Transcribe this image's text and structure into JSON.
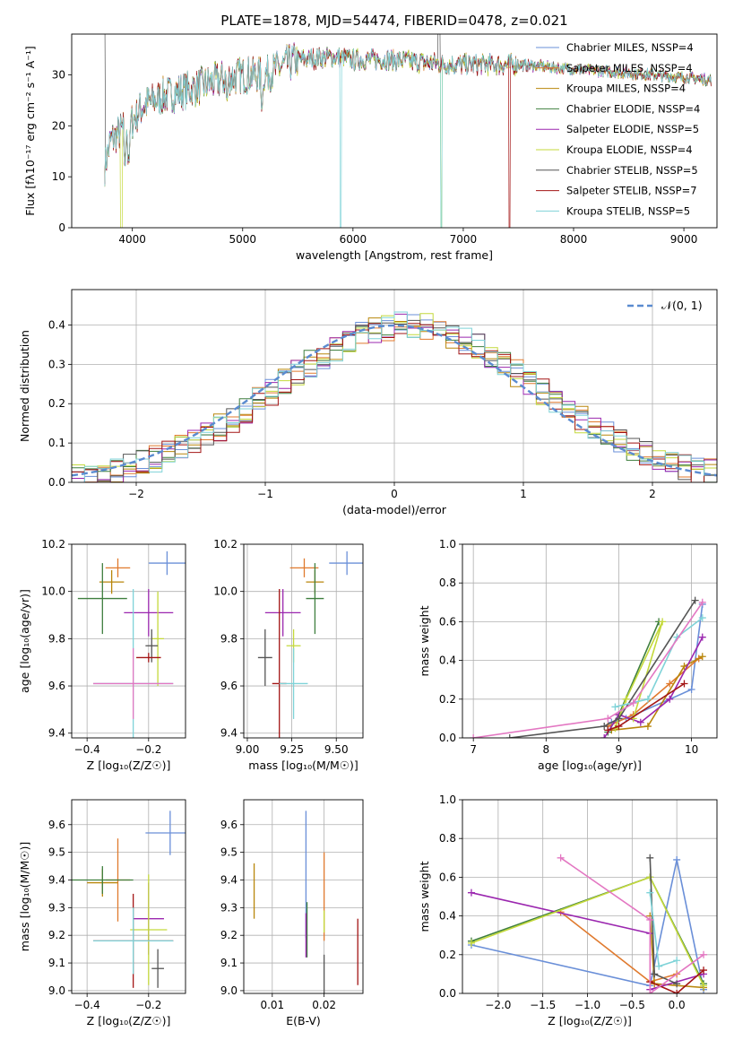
{
  "figure": {
    "title": "PLATE=1878, MJD=54474, FIBERID=0478, z=0.021",
    "colors": [
      "#6a8fd8",
      "#e07a2e",
      "#b8860b",
      "#3f7f3f",
      "#9b27af",
      "#c4d93b",
      "#555555",
      "#a31515",
      "#7fd3d8"
    ],
    "extra_colors": {
      "pink": "#e377c2",
      "lime": "#a6d13a",
      "darkgreen": "#2e6b2e",
      "gray": "#444444"
    }
  },
  "chart_data": [
    {
      "id": "spectrum",
      "type": "line",
      "xlabel": "wavelength [Angstrom, rest frame]",
      "ylabel": "Flux [fλ10⁻¹⁷ erg cm⁻² s⁻¹ A⁻¹]",
      "xlim": [
        3450,
        9300
      ],
      "ylim": [
        0,
        38
      ],
      "xticks": [
        4000,
        5000,
        6000,
        7000,
        8000,
        9000
      ],
      "yticks": [
        0,
        10,
        20,
        30
      ],
      "legend_position": "top-right",
      "series": [
        {
          "name": "Chabrier MILES, NSSP=4"
        },
        {
          "name": "Salpeter MILES, NSSP=4"
        },
        {
          "name": "Kroupa MILES, NSSP=4"
        },
        {
          "name": "Chabrier ELODIE, NSSP=4"
        },
        {
          "name": "Salpeter ELODIE, NSSP=5"
        },
        {
          "name": "Kroupa ELODIE, NSSP=4"
        },
        {
          "name": "Chabrier STELIB, NSSP=5"
        },
        {
          "name": "Salpeter STELIB, NSSP=7"
        },
        {
          "name": "Kroupa STELIB, NSSP=5"
        }
      ],
      "continuum": {
        "x": [
          3750,
          3800,
          3900,
          4000,
          4100,
          4300,
          4500,
          4800,
          5000,
          5200,
          5500,
          5800,
          6000,
          6300,
          6600,
          6900,
          7200,
          7500,
          7800,
          8100,
          8400,
          8700,
          9000,
          9250
        ],
        "y": [
          12,
          17,
          19,
          21,
          24,
          26,
          27,
          29,
          30,
          30,
          33,
          33.5,
          33,
          33,
          32.5,
          32,
          32,
          32,
          31.5,
          31,
          30.5,
          30,
          29.5,
          29
        ]
      }
    },
    {
      "id": "residuals",
      "type": "histogram",
      "xlabel": "(data-model)/error",
      "ylabel": "Normed distribution",
      "xlim": [
        -2.5,
        2.5
      ],
      "ylim": [
        0,
        0.49
      ],
      "xticks": [
        -2,
        -1,
        0,
        1,
        2
      ],
      "yticks": [
        0.0,
        0.1,
        0.2,
        0.3,
        0.4
      ],
      "legend": "𝒩(0, 1)",
      "legend_position": "top-right",
      "grid": true
    },
    {
      "id": "age_vs_Z",
      "type": "errorbar",
      "xlabel": "Z [log₁₀(Z/Z☉)]",
      "ylabel": "age  [log₁₀(age/yr)]",
      "xlim": [
        -0.45,
        -0.08
      ],
      "ylim": [
        9.38,
        10.2
      ],
      "xticks": [
        -0.4,
        -0.2
      ],
      "yticks": [
        9.4,
        9.6,
        9.8,
        10.0,
        10.2
      ],
      "grid": true,
      "points": [
        {
          "x": -0.14,
          "xerr": 0.06,
          "y": 10.12,
          "yerr": 0.05
        },
        {
          "x": -0.3,
          "xerr": 0.04,
          "y": 10.1,
          "yerr": 0.04
        },
        {
          "x": -0.32,
          "xerr": 0.04,
          "y": 10.04,
          "yerr": 0.05
        },
        {
          "x": -0.35,
          "xerr": 0.08,
          "y": 9.97,
          "yerr": 0.15
        },
        {
          "x": -0.2,
          "xerr": 0.08,
          "y": 9.91,
          "yerr": 0.1
        },
        {
          "x": -0.17,
          "xerr": 0.02,
          "y": 9.8,
          "yerr": 0.2
        },
        {
          "x": -0.19,
          "xerr": 0.02,
          "y": 9.77,
          "yerr": 0.07
        },
        {
          "x": -0.2,
          "xerr": 0.04,
          "y": 9.72,
          "yerr": 0.02
        },
        {
          "x": -0.25,
          "xerr": 0.13,
          "y": 9.61,
          "yerr": 0.4
        },
        {
          "x": -0.25,
          "xerr": 0.13,
          "y": 9.61,
          "yerr": 0.15
        }
      ]
    },
    {
      "id": "age_vs_mass",
      "type": "errorbar",
      "xlabel": "mass [log₁₀(M/M☉)]",
      "ylabel": "",
      "xlim": [
        8.98,
        9.65
      ],
      "ylim": [
        9.38,
        10.2
      ],
      "xticks": [
        9.0,
        9.25,
        9.5
      ],
      "yticks": [
        9.4,
        9.6,
        9.8,
        10.0,
        10.2
      ],
      "grid": true,
      "points": [
        {
          "x": 9.56,
          "xerr": 0.1,
          "y": 10.12,
          "yerr": 0.05
        },
        {
          "x": 9.32,
          "xerr": 0.08,
          "y": 10.1,
          "yerr": 0.04
        },
        {
          "x": 9.38,
          "xerr": 0.05,
          "y": 10.04,
          "yerr": 0.05
        },
        {
          "x": 9.38,
          "xerr": 0.05,
          "y": 9.97,
          "yerr": 0.15
        },
        {
          "x": 9.2,
          "xerr": 0.1,
          "y": 9.91,
          "yerr": 0.1
        },
        {
          "x": 9.26,
          "xerr": 0.04,
          "y": 9.77,
          "yerr": 0.07
        },
        {
          "x": 9.1,
          "xerr": 0.04,
          "y": 9.72,
          "yerr": 0.12
        },
        {
          "x": 9.18,
          "xerr": 0.04,
          "y": 9.61,
          "yerr": 0.4
        },
        {
          "x": 9.26,
          "xerr": 0.08,
          "y": 9.61,
          "yerr": 0.15
        }
      ]
    },
    {
      "id": "mass_weight_vs_age",
      "type": "line",
      "xlabel": "age  [log₁₀(age/yr)]",
      "ylabel": "mass weight",
      "xlim": [
        6.85,
        10.35
      ],
      "ylim": [
        0,
        1.0
      ],
      "xticks": [
        7,
        8,
        9,
        10
      ],
      "yticks": [
        0.0,
        0.2,
        0.4,
        0.6,
        0.8,
        1.0
      ],
      "grid": true,
      "series": [
        {
          "x": [
            8.9,
            9.1,
            10.0,
            10.15
          ],
          "y": [
            0.08,
            0.1,
            0.25,
            0.69
          ]
        },
        {
          "x": [
            8.85,
            9.2,
            9.7,
            10.1
          ],
          "y": [
            0.06,
            0.12,
            0.28,
            0.41
          ]
        },
        {
          "x": [
            8.9,
            9.4,
            9.9,
            10.15
          ],
          "y": [
            0.04,
            0.06,
            0.37,
            0.42
          ]
        },
        {
          "x": [
            8.85,
            9.0,
            9.55
          ],
          "y": [
            0.03,
            0.12,
            0.6
          ]
        },
        {
          "x": [
            8.8,
            9.0,
            9.3,
            9.7,
            10.15
          ],
          "y": [
            0.0,
            0.12,
            0.08,
            0.2,
            0.52
          ]
        },
        {
          "x": [
            8.95,
            9.1,
            9.6,
            9.2
          ],
          "y": [
            0.05,
            0.2,
            0.6,
            0.1
          ]
        },
        {
          "x": [
            7.5,
            8.8,
            9.0,
            10.05
          ],
          "y": [
            0.0,
            0.06,
            0.1,
            0.71
          ]
        },
        {
          "x": [
            8.85,
            9.0,
            9.9
          ],
          "y": [
            0.04,
            0.06,
            0.28
          ]
        },
        {
          "x": [
            8.95,
            9.4,
            9.8,
            10.15
          ],
          "y": [
            0.16,
            0.2,
            0.52,
            0.62
          ]
        },
        {
          "x": [
            7.0,
            8.85,
            9.2,
            10.15
          ],
          "y": [
            0.0,
            0.1,
            0.18,
            0.7
          ]
        }
      ]
    },
    {
      "id": "mass_vs_Z",
      "type": "errorbar",
      "xlabel": "Z [log₁₀(Z/Z☉)]",
      "ylabel": "mass [log₁₀(M/M☉)]",
      "xlim": [
        -0.45,
        -0.08
      ],
      "ylim": [
        8.99,
        9.69
      ],
      "xticks": [
        -0.4,
        -0.2
      ],
      "yticks": [
        9.0,
        9.1,
        9.2,
        9.3,
        9.4,
        9.5,
        9.6
      ],
      "grid": true,
      "points": [
        {
          "x": -0.13,
          "xerr": 0.08,
          "y": 9.57,
          "yerr": 0.08
        },
        {
          "x": -0.3,
          "xerr": 0.04,
          "y": 9.4,
          "yerr": 0.15
        },
        {
          "x": -0.35,
          "xerr": 0.05,
          "y": 9.39,
          "yerr": 0.05
        },
        {
          "x": -0.35,
          "xerr": 0.1,
          "y": 9.4,
          "yerr": 0.05
        },
        {
          "x": -0.2,
          "xerr": 0.05,
          "y": 9.26,
          "yerr": 0.13
        },
        {
          "x": -0.2,
          "xerr": 0.06,
          "y": 9.22,
          "yerr": 0.2
        },
        {
          "x": -0.17,
          "xerr": 0.02,
          "y": 9.08,
          "yerr": 0.07
        },
        {
          "x": -0.25,
          "xerr": 0.13,
          "y": 9.18,
          "yerr": 0.17
        },
        {
          "x": -0.25,
          "xerr": 0.13,
          "y": 9.18,
          "yerr": 0.12
        }
      ]
    },
    {
      "id": "mass_vs_ebv",
      "type": "errorbar",
      "xlabel": "E(B-V)",
      "ylabel": "",
      "xlim": [
        0.0045,
        0.0275
      ],
      "ylim": [
        8.99,
        9.69
      ],
      "xticks": [
        0.01,
        0.02
      ],
      "yticks": [
        9.0,
        9.1,
        9.2,
        9.3,
        9.4,
        9.5,
        9.6
      ],
      "grid": true,
      "points": [
        {
          "x": 0.0165,
          "y": 9.42,
          "yerr": 0.23
        },
        {
          "x": 0.02,
          "y": 9.34,
          "yerr": 0.16
        },
        {
          "x": 0.0065,
          "y": 9.36,
          "yerr": 0.1
        },
        {
          "x": 0.0167,
          "y": 9.22,
          "yerr": 0.1
        },
        {
          "x": 0.0165,
          "y": 9.2,
          "yerr": 0.08
        },
        {
          "x": 0.02,
          "y": 9.25,
          "yerr": 0.04
        },
        {
          "x": 0.02,
          "y": 9.06,
          "yerr": 0.07
        },
        {
          "x": 0.0265,
          "y": 9.14,
          "yerr": 0.12
        }
      ]
    },
    {
      "id": "mass_weight_vs_Z",
      "type": "line",
      "xlabel": "Z [log₁₀(Z/Z☉)]",
      "ylabel": "mass weight",
      "xlim": [
        -2.4,
        0.45
      ],
      "ylim": [
        0,
        1.0
      ],
      "xticks": [
        -2.0,
        -1.5,
        -1.0,
        -0.5,
        0.0
      ],
      "yticks": [
        0.0,
        0.2,
        0.4,
        0.6,
        0.8,
        1.0
      ],
      "grid": true,
      "series": [
        {
          "x": [
            -2.3,
            -0.3,
            0.0,
            0.3
          ],
          "y": [
            0.25,
            0.04,
            0.69,
            0.02
          ]
        },
        {
          "x": [
            -1.3,
            -0.3,
            0.0
          ],
          "y": [
            0.42,
            0.06,
            0.1
          ]
        },
        {
          "x": [
            -0.3,
            -0.25,
            0.3
          ],
          "y": [
            0.4,
            0.05,
            0.03
          ]
        },
        {
          "x": [
            -2.3,
            -0.3,
            0.3
          ],
          "y": [
            0.27,
            0.6,
            0.05
          ]
        },
        {
          "x": [
            -2.3,
            -0.3,
            -0.3,
            0.3
          ],
          "y": [
            0.52,
            0.31,
            0.02,
            0.1
          ]
        },
        {
          "x": [
            -2.3,
            -0.3,
            0.3
          ],
          "y": [
            0.26,
            0.6,
            0.04
          ]
        },
        {
          "x": [
            -0.3,
            -0.25,
            0.0
          ],
          "y": [
            0.7,
            0.1,
            0.05
          ]
        },
        {
          "x": [
            -0.3,
            0.0,
            0.3
          ],
          "y": [
            0.06,
            0.0,
            0.12
          ]
        },
        {
          "x": [
            -0.3,
            -0.2,
            0.0
          ],
          "y": [
            0.52,
            0.14,
            0.17
          ]
        },
        {
          "x": [
            -1.3,
            -0.3,
            -0.3,
            0.3
          ],
          "y": [
            0.7,
            0.38,
            0.0,
            0.2
          ]
        }
      ]
    }
  ]
}
